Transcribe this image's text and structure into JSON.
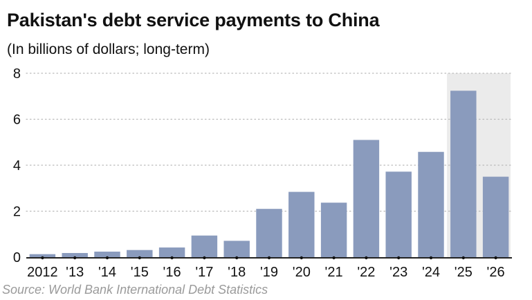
{
  "title": "Pakistan's debt service payments to China",
  "subtitle": "(In billions of dollars; long-term)",
  "source": "Source: World Bank International Debt Statistics",
  "colors": {
    "bar": "#8a9bbd",
    "projection_shade": "#ebebeb",
    "gridline": "#b9b9b9",
    "axis": "#222222",
    "source_text": "#9a9a9a"
  },
  "chart_data": {
    "type": "bar",
    "categories": [
      "2012",
      "'13",
      "'14",
      "'15",
      "'16",
      "'17",
      "'18",
      "'19",
      "'20",
      "'21",
      "'22",
      "'23",
      "'24",
      "'25",
      "'26"
    ],
    "values": [
      0.13,
      0.18,
      0.24,
      0.31,
      0.42,
      0.94,
      0.71,
      2.1,
      2.84,
      2.37,
      5.1,
      3.72,
      4.58,
      7.24,
      3.5
    ],
    "y_ticks": [
      "0",
      "2",
      "4",
      "6",
      "8"
    ],
    "ylim": [
      0,
      8
    ],
    "grid": "horizontal dotted",
    "highlighted_categories": [
      "'25",
      "'26"
    ],
    "title": "Pakistan's debt service payments to China",
    "subtitle": "(In billions of dollars; long-term)",
    "xlabel": "",
    "ylabel": ""
  }
}
